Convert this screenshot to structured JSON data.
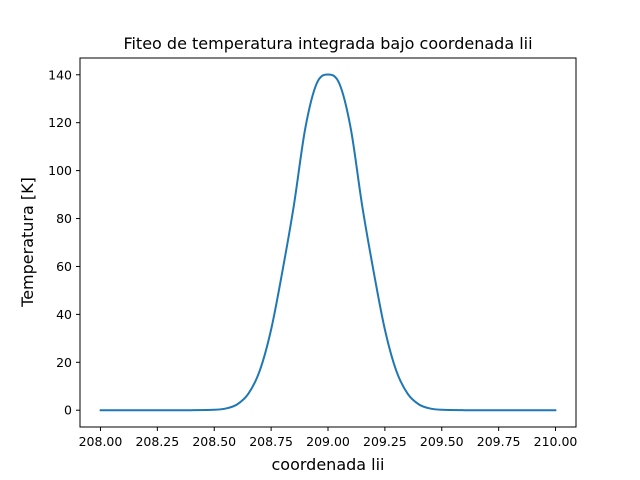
{
  "chart_data": {
    "type": "line",
    "title": "Fiteo de temperatura integrada bajo coordenada lii",
    "xlabel": "coordenada lii",
    "ylabel": "Temperatura [K]",
    "xlim": [
      207.91,
      210.09
    ],
    "ylim": [
      -7.0,
      147.0
    ],
    "x_ticks": [
      208.0,
      208.25,
      208.5,
      208.75,
      209.0,
      209.25,
      209.5,
      209.75,
      210.0
    ],
    "x_tick_labels": [
      "208.00",
      "208.25",
      "208.50",
      "208.75",
      "209.00",
      "209.25",
      "209.50",
      "209.75",
      "210.00"
    ],
    "y_ticks": [
      0,
      20,
      40,
      60,
      80,
      100,
      120,
      140
    ],
    "y_tick_labels": [
      "0",
      "20",
      "40",
      "60",
      "80",
      "100",
      "120",
      "140"
    ],
    "grid": false,
    "series": [
      {
        "color": "#1f77b4",
        "x": [
          208.0,
          208.1,
          208.2,
          208.3,
          208.4,
          208.5,
          208.55,
          208.6,
          208.65,
          208.7,
          208.75,
          208.8,
          208.85,
          208.9,
          208.95,
          209.0,
          209.05,
          209.1,
          209.15,
          209.2,
          209.25,
          209.3,
          209.35,
          209.4,
          209.45,
          209.5,
          209.6,
          209.7,
          209.8,
          209.9,
          210.0
        ],
        "y": [
          0.0,
          0.0,
          0.0,
          0.0,
          0.01,
          0.18,
          0.7,
          2.4,
          6.9,
          16.5,
          33.7,
          58.2,
          85.5,
          117.6,
          136.3,
          140.1,
          136.3,
          117.6,
          85.5,
          58.2,
          33.7,
          16.5,
          6.9,
          2.4,
          0.7,
          0.18,
          0.01,
          0.0,
          0.0,
          0.0,
          0.0
        ]
      }
    ]
  }
}
